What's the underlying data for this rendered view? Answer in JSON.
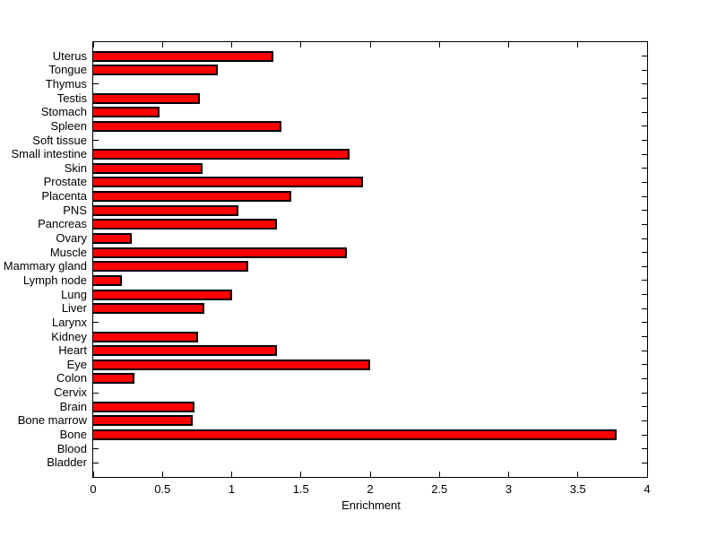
{
  "chart_data": {
    "type": "bar",
    "orientation": "horizontal",
    "title": "",
    "xlabel": "Enrichment",
    "ylabel": "",
    "xlim": [
      0,
      4
    ],
    "xticks": [
      0,
      0.5,
      1,
      1.5,
      2,
      2.5,
      3,
      3.5,
      4
    ],
    "xtick_labels": [
      "0",
      "0.5",
      "1",
      "1.5",
      "2",
      "2.5",
      "3",
      "3.5",
      "4"
    ],
    "grid": false,
    "legend": null,
    "bar_color": "#ff0000",
    "bar_edge_color": "#000000",
    "axis_color": "#000000",
    "background_color": "#ffffff",
    "categories": [
      "Uterus",
      "Tongue",
      "Thymus",
      "Testis",
      "Stomach",
      "Spleen",
      "Soft tissue",
      "Small intestine",
      "Skin",
      "Prostate",
      "Placenta",
      "PNS",
      "Pancreas",
      "Ovary",
      "Muscle",
      "Mammary gland",
      "Lymph node",
      "Lung",
      "Liver",
      "Larynx",
      "Kidney",
      "Heart",
      "Eye",
      "Colon",
      "Cervix",
      "Brain",
      "Bone marrow",
      "Bone",
      "Blood",
      "Bladder"
    ],
    "values": [
      1.3,
      0.9,
      0,
      0.77,
      0.48,
      1.36,
      0,
      1.85,
      0.79,
      1.95,
      1.43,
      1.05,
      1.33,
      0.28,
      1.83,
      1.12,
      0.21,
      1.0,
      0.8,
      0,
      0.76,
      1.33,
      2.0,
      0.3,
      0,
      0.73,
      0.72,
      3.78,
      0,
      0
    ]
  }
}
